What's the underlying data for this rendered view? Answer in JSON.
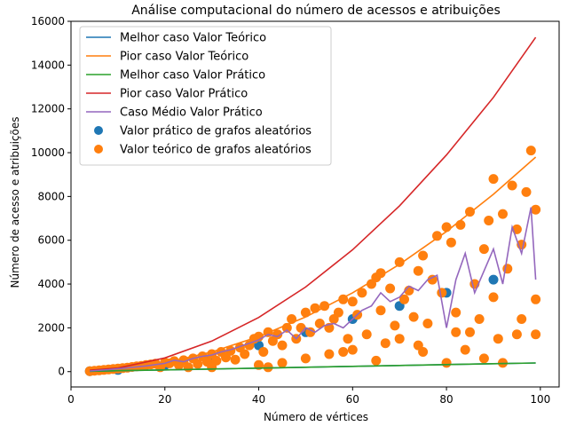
{
  "chart_data": {
    "type": "line",
    "title": "Análise computacional do número de acessos e atribuições",
    "xlabel": "Número de vértices",
    "ylabel": "Número de acesso e atribuições",
    "xlim": [
      0,
      104
    ],
    "ylim": [
      -700,
      16000
    ],
    "xticks": [
      0,
      20,
      40,
      60,
      80,
      100
    ],
    "yticks": [
      0,
      2000,
      4000,
      6000,
      8000,
      10000,
      12000,
      14000,
      16000
    ],
    "grid": false,
    "legend_position": "top-left",
    "colors": {
      "melhor_teorico": "#1f77b4",
      "pior_teorico": "#ff7f0e",
      "melhor_pratico": "#2ca02c",
      "pior_pratico": "#d62728",
      "medio_pratico": "#9467bd",
      "scatter_pratico": "#1f77b4",
      "scatter_teorico": "#ff7f0e"
    },
    "series": [
      {
        "name": "Melhor caso Valor Teórico",
        "kind": "line",
        "color": "#1f77b4",
        "x": [
          4,
          10,
          20,
          30,
          40,
          50,
          60,
          70,
          80,
          90,
          99
        ],
        "y": [
          16,
          40,
          80,
          120,
          160,
          200,
          240,
          280,
          320,
          360,
          396
        ]
      },
      {
        "name": "Pior caso Valor Teórico",
        "kind": "line",
        "color": "#ff7f0e",
        "x": [
          4,
          10,
          20,
          30,
          40,
          50,
          60,
          70,
          80,
          90,
          99
        ],
        "y": [
          32,
          100,
          400,
          900,
          1600,
          2500,
          3600,
          4900,
          6400,
          8100,
          9800
        ]
      },
      {
        "name": "Melhor caso Valor Prático",
        "kind": "line",
        "color": "#2ca02c",
        "x": [
          4,
          10,
          20,
          30,
          40,
          50,
          60,
          70,
          80,
          90,
          99
        ],
        "y": [
          16,
          40,
          80,
          120,
          160,
          200,
          240,
          280,
          320,
          360,
          396
        ]
      },
      {
        "name": "Pior caso Valor Prático",
        "kind": "line",
        "color": "#d62728",
        "x": [
          4,
          10,
          20,
          30,
          40,
          50,
          60,
          70,
          80,
          90,
          99
        ],
        "y": [
          64,
          165,
          625,
          1395,
          2475,
          3865,
          5565,
          7575,
          9895,
          12525,
          15265
        ]
      },
      {
        "name": "Caso Médio Valor Prático",
        "kind": "line",
        "color": "#9467bd",
        "x": [
          4,
          8,
          12,
          16,
          20,
          22,
          24,
          26,
          28,
          30,
          32,
          34,
          36,
          38,
          40,
          42,
          44,
          46,
          48,
          50,
          52,
          54,
          56,
          58,
          60,
          62,
          64,
          66,
          68,
          70,
          72,
          74,
          76,
          78,
          80,
          82,
          84,
          86,
          88,
          90,
          92,
          94,
          96,
          98,
          99
        ],
        "y": [
          30,
          90,
          170,
          260,
          380,
          520,
          450,
          600,
          700,
          760,
          900,
          1000,
          1150,
          1300,
          1450,
          1700,
          1600,
          1900,
          1500,
          2000,
          1800,
          2100,
          2200,
          2000,
          2400,
          2800,
          3000,
          3600,
          3200,
          3400,
          3900,
          3700,
          4200,
          4400,
          2000,
          4200,
          5400,
          3600,
          4600,
          5600,
          4000,
          6600,
          5400,
          7500,
          4200
        ]
      },
      {
        "name": "Valor prático de grafos aleatórios",
        "kind": "scatter",
        "color": "#1f77b4",
        "points": [
          [
            4,
            20
          ],
          [
            10,
            80
          ],
          [
            20,
            300
          ],
          [
            30,
            600
          ],
          [
            40,
            1200
          ],
          [
            50,
            1800
          ],
          [
            60,
            2400
          ],
          [
            70,
            3000
          ],
          [
            80,
            3600
          ],
          [
            90,
            4200
          ]
        ]
      },
      {
        "name": "Valor teórico de grafos aleatórios",
        "kind": "scatter",
        "color": "#ff7f0e",
        "points": [
          [
            4,
            20
          ],
          [
            5,
            40
          ],
          [
            6,
            60
          ],
          [
            7,
            80
          ],
          [
            8,
            100
          ],
          [
            9,
            120
          ],
          [
            10,
            140
          ],
          [
            11,
            160
          ],
          [
            12,
            180
          ],
          [
            13,
            210
          ],
          [
            14,
            240
          ],
          [
            15,
            260
          ],
          [
            16,
            300
          ],
          [
            17,
            330
          ],
          [
            18,
            360
          ],
          [
            19,
            200
          ],
          [
            20,
            420
          ],
          [
            21,
            380
          ],
          [
            22,
            480
          ],
          [
            23,
            300
          ],
          [
            24,
            520
          ],
          [
            25,
            200
          ],
          [
            26,
            600
          ],
          [
            27,
            350
          ],
          [
            28,
            700
          ],
          [
            29,
            450
          ],
          [
            30,
            800
          ],
          [
            31,
            500
          ],
          [
            32,
            900
          ],
          [
            33,
            650
          ],
          [
            34,
            950
          ],
          [
            35,
            550
          ],
          [
            36,
            1100
          ],
          [
            37,
            800
          ],
          [
            38,
            1200
          ],
          [
            39,
            1500
          ],
          [
            40,
            1600
          ],
          [
            41,
            900
          ],
          [
            42,
            1800
          ],
          [
            43,
            1400
          ],
          [
            44,
            1700
          ],
          [
            45,
            1200
          ],
          [
            46,
            2000
          ],
          [
            47,
            2400
          ],
          [
            48,
            1500
          ],
          [
            49,
            2000
          ],
          [
            50,
            2700
          ],
          [
            51,
            1800
          ],
          [
            52,
            2900
          ],
          [
            53,
            2200
          ],
          [
            54,
            3000
          ],
          [
            55,
            2000
          ],
          [
            56,
            2400
          ],
          [
            57,
            2700
          ],
          [
            58,
            3300
          ],
          [
            59,
            1500
          ],
          [
            60,
            3200
          ],
          [
            61,
            2600
          ],
          [
            62,
            3600
          ],
          [
            63,
            1700
          ],
          [
            64,
            4000
          ],
          [
            65,
            4300
          ],
          [
            66,
            4500
          ],
          [
            67,
            1300
          ],
          [
            68,
            3800
          ],
          [
            69,
            2100
          ],
          [
            70,
            5000
          ],
          [
            71,
            3300
          ],
          [
            72,
            3700
          ],
          [
            73,
            2500
          ],
          [
            74,
            4600
          ],
          [
            75,
            5300
          ],
          [
            76,
            2200
          ],
          [
            77,
            4200
          ],
          [
            78,
            6200
          ],
          [
            79,
            3600
          ],
          [
            80,
            6600
          ],
          [
            81,
            5900
          ],
          [
            82,
            2700
          ],
          [
            83,
            6700
          ],
          [
            84,
            1000
          ],
          [
            85,
            7300
          ],
          [
            86,
            4000
          ],
          [
            87,
            2400
          ],
          [
            88,
            5600
          ],
          [
            89,
            6900
          ],
          [
            90,
            8800
          ],
          [
            91,
            1500
          ],
          [
            92,
            7200
          ],
          [
            93,
            4700
          ],
          [
            94,
            8500
          ],
          [
            95,
            6500
          ],
          [
            96,
            2400
          ],
          [
            97,
            8200
          ],
          [
            98,
            10100
          ],
          [
            99,
            7400
          ],
          [
            30,
            200
          ],
          [
            40,
            300
          ],
          [
            45,
            400
          ],
          [
            50,
            600
          ],
          [
            55,
            800
          ],
          [
            60,
            1000
          ],
          [
            65,
            500
          ],
          [
            70,
            1500
          ],
          [
            75,
            900
          ],
          [
            80,
            400
          ],
          [
            85,
            1800
          ],
          [
            88,
            600
          ],
          [
            92,
            400
          ],
          [
            96,
            5800
          ],
          [
            99,
            3300
          ],
          [
            42,
            200
          ],
          [
            58,
            900
          ],
          [
            66,
            2800
          ],
          [
            74,
            1200
          ],
          [
            82,
            1800
          ],
          [
            90,
            3400
          ],
          [
            95,
            1700
          ],
          [
            99,
            1700
          ]
        ]
      }
    ]
  }
}
